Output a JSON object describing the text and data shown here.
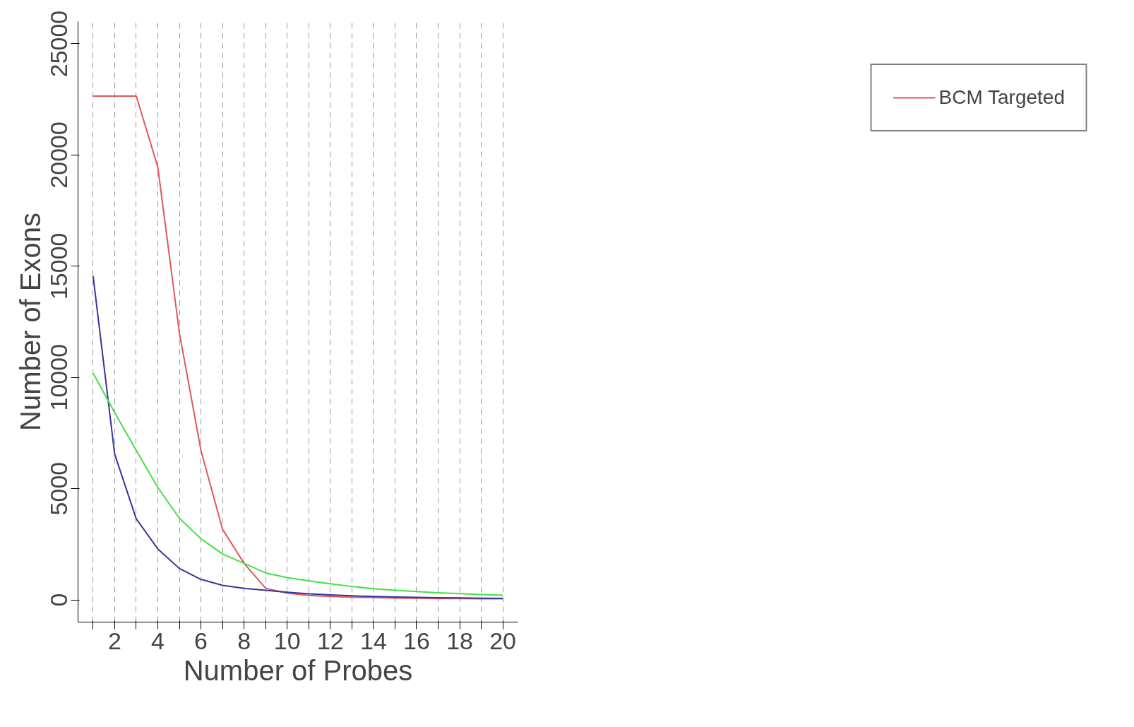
{
  "chart_data": {
    "type": "line",
    "xlabel": "Number of Probes",
    "ylabel": "Number of Exons",
    "x": [
      1,
      2,
      3,
      4,
      5,
      6,
      7,
      8,
      9,
      10,
      11,
      12,
      13,
      14,
      15,
      16,
      17,
      18,
      19,
      20
    ],
    "series": [
      {
        "name": "BCM Targeted",
        "color": "#e05858",
        "values": [
          22650,
          22650,
          22650,
          19460,
          12000,
          6720,
          3180,
          1640,
          520,
          300,
          200,
          150,
          120,
          100,
          80,
          70,
          60,
          55,
          50,
          50
        ]
      },
      {
        "color": "#3535a0",
        "values": [
          14550,
          6550,
          3640,
          2290,
          1410,
          920,
          650,
          520,
          430,
          340,
          270,
          220,
          180,
          150,
          130,
          110,
          95,
          85,
          75,
          65
        ]
      },
      {
        "color": "#44e044",
        "values": [
          10190,
          8420,
          6720,
          5050,
          3670,
          2750,
          2060,
          1640,
          1210,
          1000,
          850,
          720,
          600,
          500,
          430,
          370,
          320,
          280,
          240,
          210
        ]
      }
    ],
    "xlim": [
      0.3,
      20.7
    ],
    "ylim": [
      -1000,
      26000
    ],
    "xticks": [
      {
        "value": 1,
        "label": null
      },
      2,
      {
        "value": 3,
        "label": null
      },
      4,
      {
        "value": 5,
        "label": null
      },
      6,
      {
        "value": 7,
        "label": null
      },
      8,
      {
        "value": 9,
        "label": null
      },
      10,
      {
        "value": 11,
        "label": null
      },
      12,
      {
        "value": 13,
        "label": null
      },
      14,
      {
        "value": 15,
        "label": null
      },
      16,
      {
        "value": 17,
        "label": null
      },
      18,
      {
        "value": 19,
        "label": null
      },
      20
    ],
    "yticks": [
      0,
      5000,
      10000,
      15000,
      20000,
      25000
    ],
    "grid": "x",
    "legend": "right",
    "marker": "none",
    "line_style": "solid"
  }
}
